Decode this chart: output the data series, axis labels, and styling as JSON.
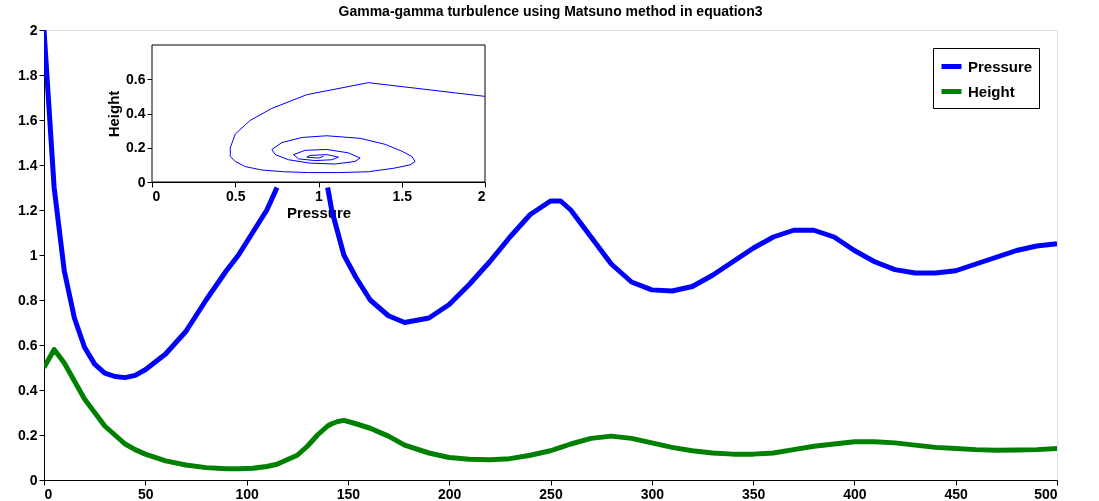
{
  "chart_data": [
    {
      "type": "line",
      "title": "Gamma-gamma turbulence using Matsuno method in equation3",
      "x": [
        0,
        5,
        10,
        15,
        20,
        25,
        30,
        35,
        40,
        45,
        50,
        60,
        70,
        80,
        90,
        96,
        103,
        110,
        115,
        120,
        125,
        130,
        135,
        140,
        142,
        145,
        148,
        154,
        161,
        170,
        178,
        190,
        200,
        210,
        220,
        230,
        240,
        250,
        255,
        260,
        270,
        280,
        290,
        300,
        310,
        320,
        330,
        340,
        350,
        360,
        370,
        380,
        390,
        400,
        410,
        420,
        430,
        440,
        450,
        460,
        470,
        480,
        490,
        500
      ],
      "series": [
        {
          "name": "Pressure",
          "color": "#0000ff",
          "values": [
            2.0,
            1.3,
            0.93,
            0.72,
            0.59,
            0.515,
            0.475,
            0.46,
            0.455,
            0.465,
            0.49,
            0.56,
            0.66,
            0.8,
            0.93,
            1.0,
            1.1,
            1.2,
            1.3,
            null,
            null,
            null,
            null,
            1.3,
            1.2,
            1.1,
            1.0,
            0.9,
            0.8,
            0.73,
            0.7,
            0.72,
            0.78,
            0.87,
            0.97,
            1.08,
            1.18,
            1.24,
            1.24,
            1.2,
            1.08,
            0.96,
            0.88,
            0.845,
            0.84,
            0.86,
            0.91,
            0.97,
            1.03,
            1.08,
            1.11,
            1.11,
            1.08,
            1.02,
            0.97,
            0.935,
            0.92,
            0.92,
            0.93,
            0.96,
            0.99,
            1.02,
            1.04,
            1.05
          ]
        },
        {
          "name": "Height",
          "color": "#008000",
          "values": [
            0.5,
            0.58,
            0.52,
            0.44,
            0.36,
            0.3,
            0.24,
            0.2,
            0.16,
            0.135,
            0.115,
            0.085,
            0.067,
            0.055,
            0.05,
            0.05,
            0.052,
            0.06,
            0.07,
            0.09,
            0.11,
            0.15,
            0.2,
            0.24,
            0.25,
            0.26,
            0.265,
            0.25,
            0.23,
            0.195,
            0.155,
            0.12,
            0.1,
            0.092,
            0.09,
            0.095,
            0.11,
            0.13,
            0.145,
            0.16,
            0.185,
            0.195,
            0.185,
            0.165,
            0.145,
            0.13,
            0.12,
            0.115,
            0.115,
            0.12,
            0.135,
            0.15,
            0.16,
            0.17,
            0.17,
            0.165,
            0.155,
            0.145,
            0.14,
            0.135,
            0.132,
            0.133,
            0.135,
            0.14
          ]
        }
      ],
      "xlim": [
        0,
        500
      ],
      "ylim": [
        0,
        2
      ],
      "xticks": [
        0,
        50,
        100,
        150,
        200,
        250,
        300,
        350,
        400,
        450,
        500
      ],
      "yticks": [
        0,
        0.2,
        0.4,
        0.6,
        0.8,
        1,
        1.2,
        1.4,
        1.6,
        1.8,
        2
      ],
      "legend": "top right"
    },
    {
      "type": "line",
      "xlabel": "Pressure",
      "ylabel": "Height",
      "series": [
        {
          "color": "#0000ff",
          "x": [
            2.0,
            1.3,
            0.93,
            0.72,
            0.59,
            0.5,
            0.47,
            0.47,
            0.5,
            0.56,
            0.66,
            0.79,
            0.94,
            1.12,
            1.3,
            1.45,
            1.55,
            1.58,
            1.56,
            1.5,
            1.4,
            1.25,
            1.05,
            0.9,
            0.78,
            0.72,
            0.74,
            0.82,
            0.95,
            1.1,
            1.22,
            1.25,
            1.18,
            1.05,
            0.92,
            0.85,
            0.88,
            0.98,
            1.08,
            1.12,
            1.05,
            0.95,
            0.93,
            1.0,
            1.03
          ],
          "values": [
            0.5,
            0.58,
            0.51,
            0.43,
            0.36,
            0.28,
            0.2,
            0.15,
            0.12,
            0.09,
            0.07,
            0.06,
            0.055,
            0.055,
            0.06,
            0.08,
            0.1,
            0.12,
            0.15,
            0.18,
            0.22,
            0.255,
            0.27,
            0.26,
            0.23,
            0.19,
            0.16,
            0.13,
            0.11,
            0.105,
            0.12,
            0.14,
            0.17,
            0.19,
            0.185,
            0.16,
            0.135,
            0.125,
            0.13,
            0.145,
            0.16,
            0.155,
            0.145,
            0.14,
            0.15
          ]
        }
      ],
      "xlim": [
        0,
        2
      ],
      "ylim": [
        0,
        0.8
      ],
      "xticks": [
        0,
        0.5,
        1,
        1.5,
        2
      ],
      "yticks": [
        0,
        0.2,
        0.4,
        0.6
      ]
    }
  ]
}
